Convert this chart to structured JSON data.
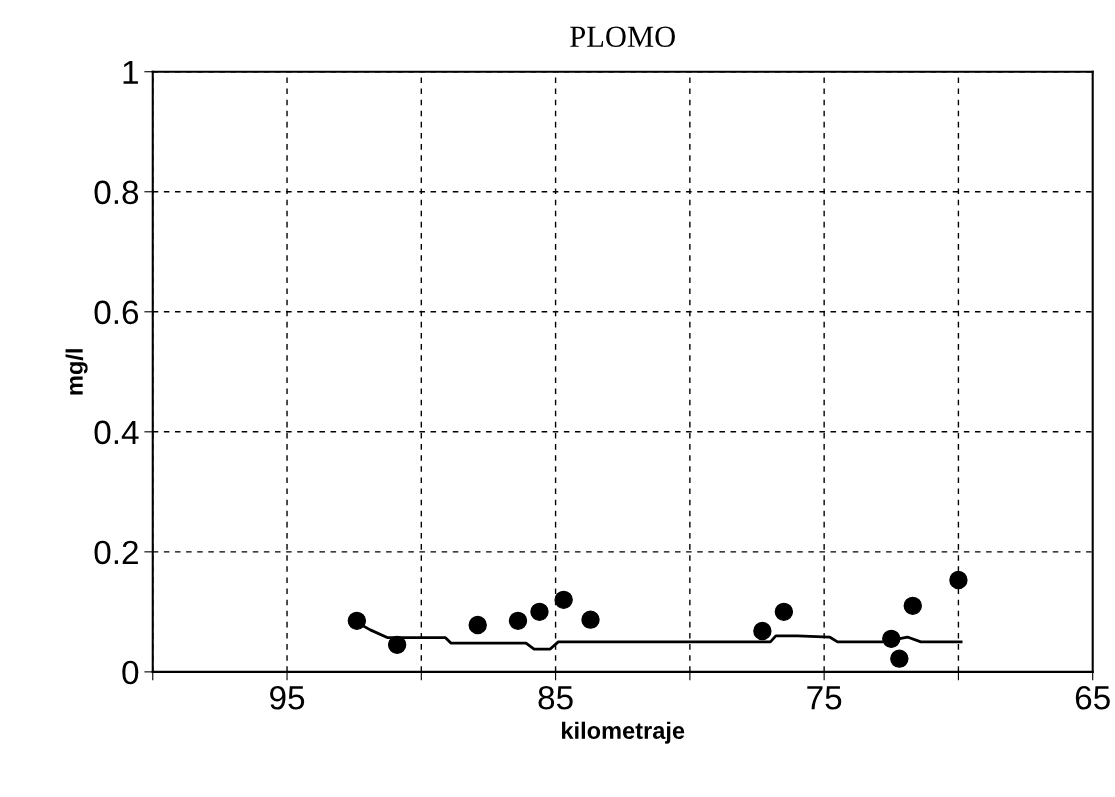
{
  "chart_data": {
    "type": "scatter",
    "title": "PLOMO",
    "xlabel": "kilometraje",
    "ylabel": "mg/l",
    "xlim": [
      100,
      65
    ],
    "xticks": [
      {
        "value": 100,
        "label": null
      },
      95,
      {
        "value": 90,
        "label": null
      },
      85,
      {
        "value": 80,
        "label": null
      },
      75,
      {
        "value": 70,
        "label": null
      },
      65
    ],
    "ylim": [
      0,
      1
    ],
    "yticks": [
      0,
      0.2,
      0.4,
      0.6,
      0.8,
      1
    ],
    "grid": true,
    "legend": false,
    "series": [
      {
        "marker": "circle",
        "color": "#000000",
        "x": [
          92.4,
          90.9,
          87.9,
          86.4,
          85.6,
          84.7,
          83.7,
          77.3,
          76.5,
          72.5,
          72.2,
          71.7,
          70.0
        ],
        "values": [
          0.085,
          0.045,
          0.078,
          0.085,
          0.1,
          0.12,
          0.087,
          0.068,
          0.1,
          0.055,
          0.022,
          0.11,
          0.153
        ]
      },
      {
        "type": "line",
        "marker": "none",
        "line_style": "solid",
        "color": "#000000",
        "x": [
          92.5,
          91.9,
          91.25,
          89.1,
          88.9,
          86.1,
          85.8,
          85.2,
          84.9,
          77.0,
          76.8,
          76.0,
          74.8,
          74.5,
          72.8,
          71.9,
          71.4,
          69.9
        ],
        "values": [
          0.085,
          0.07,
          0.057,
          0.057,
          0.048,
          0.048,
          0.038,
          0.038,
          0.05,
          0.05,
          0.06,
          0.06,
          0.058,
          0.05,
          0.05,
          0.058,
          0.05,
          0.05
        ]
      }
    ]
  }
}
